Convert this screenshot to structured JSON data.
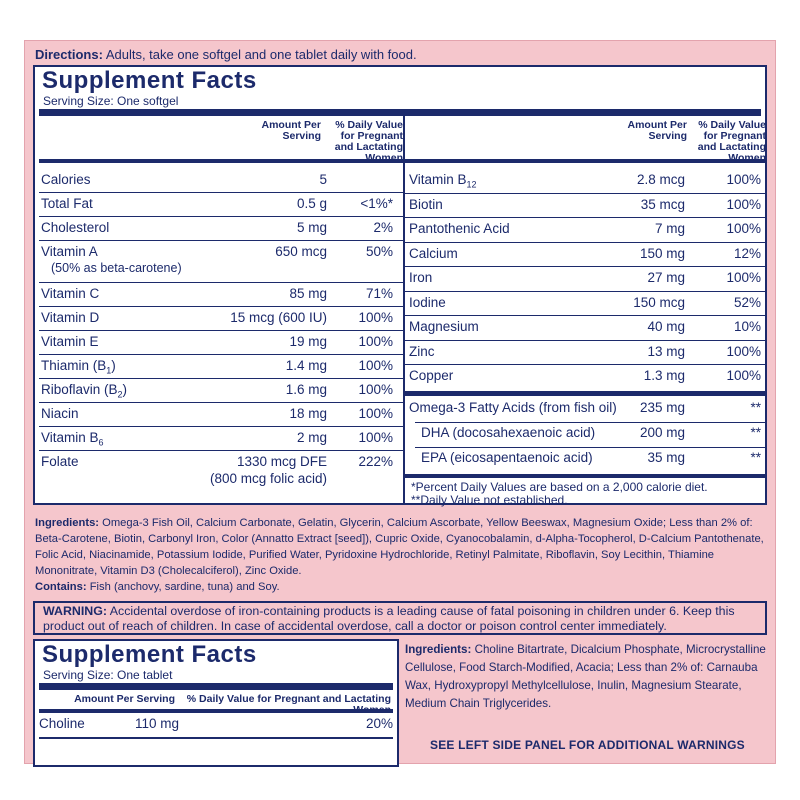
{
  "directions": {
    "label": "Directions:",
    "text": "Adults, take one softgel and one tablet daily with food."
  },
  "softgel_facts": {
    "title": "Supplement Facts",
    "serving": "Serving Size: One softgel",
    "col_amount": "Amount Per Serving",
    "col_dv": "% Daily Value for Pregnant and Lactating Women",
    "left_rows": [
      {
        "name": "Calories",
        "amount": "5",
        "dv": ""
      },
      {
        "name": "Total Fat",
        "amount": "0.5 g",
        "dv": "<1%*"
      },
      {
        "name": "Cholesterol",
        "amount": "5 mg",
        "dv": "2%"
      },
      {
        "name": "Vitamin A",
        "sub": "(50% as beta-carotene)",
        "amount": "650 mcg",
        "dv": "50%"
      },
      {
        "name": "Vitamin C",
        "amount": "85 mg",
        "dv": "71%"
      },
      {
        "name": "Vitamin D",
        "amount": "15 mcg (600 IU)",
        "dv": "100%"
      },
      {
        "name": "Vitamin E",
        "amount": "19 mg",
        "dv": "100%"
      },
      {
        "name": "Thiamin (B1)",
        "amount": "1.4 mg",
        "dv": "100%"
      },
      {
        "name": "Riboflavin (B2)",
        "amount": "1.6 mg",
        "dv": "100%"
      },
      {
        "name": "Niacin",
        "amount": "18 mg",
        "dv": "100%"
      },
      {
        "name": "Vitamin B6",
        "amount": "2 mg",
        "dv": "100%"
      },
      {
        "name": "Folate",
        "amount": "1330 mcg DFE",
        "amount2": "(800 mcg folic acid)",
        "dv": "222%"
      }
    ],
    "right_rows": [
      {
        "name": "Vitamin B12",
        "amount": "2.8 mcg",
        "dv": "100%"
      },
      {
        "name": "Biotin",
        "amount": "35 mcg",
        "dv": "100%"
      },
      {
        "name": "Pantothenic Acid",
        "amount": "7 mg",
        "dv": "100%"
      },
      {
        "name": "Calcium",
        "amount": "150 mg",
        "dv": "12%"
      },
      {
        "name": "Iron",
        "amount": "27 mg",
        "dv": "100%"
      },
      {
        "name": "Iodine",
        "amount": "150 mcg",
        "dv": "52%"
      },
      {
        "name": "Magnesium",
        "amount": "40 mg",
        "dv": "10%"
      },
      {
        "name": "Zinc",
        "amount": "13 mg",
        "dv": "100%"
      },
      {
        "name": "Copper",
        "amount": "1.3 mg",
        "dv": "100%"
      }
    ],
    "omega_rows": [
      {
        "name": "Omega-3 Fatty Acids (from fish oil)",
        "amount": "235 mg",
        "dv": "**"
      },
      {
        "name": "DHA (docosahexaenoic acid)",
        "amount": "200 mg",
        "dv": "**"
      },
      {
        "name": "EPA (eicosapentaenoic acid)",
        "amount": "35 mg",
        "dv": "**"
      }
    ],
    "footnote1": "*Percent Daily Values are based on a 2,000 calorie diet.",
    "footnote2": "**Daily Value not established."
  },
  "ingredients": {
    "label": "Ingredients:",
    "text": "Omega-3 Fish Oil, Calcium Carbonate, Gelatin, Glycerin, Calcium Ascorbate, Yellow Beeswax, Magnesium Oxide; Less than 2% of: Beta-Carotene, Biotin, Carbonyl Iron, Color (Annatto Extract [seed]), Cupric Oxide, Cyanocobalamin, d-Alpha-Tocopherol, D-Calcium Pantothenate, Folic Acid, Niacinamide, Potassium Iodide, Purified Water, Pyridoxine Hydrochloride, Retinyl Palmitate, Riboflavin, Soy Lecithin, Thiamine Mononitrate, Vitamin D3 (Cholecalciferol), Zinc Oxide."
  },
  "contains": {
    "label": "Contains:",
    "text": "Fish (anchovy, sardine, tuna) and Soy."
  },
  "warning": {
    "label": "WARNING:",
    "text": "Accidental overdose of iron-containing products is a leading cause of fatal poisoning in children under 6. Keep this product out of reach of children. In case of accidental overdose, call a doctor or poison control center immediately."
  },
  "tablet_facts": {
    "title": "Supplement Facts",
    "serving": "Serving Size: One tablet",
    "col_amount": "Amount Per Serving",
    "col_dv": "% Daily Value for Pregnant and Lactating Women",
    "row": {
      "name": "Choline",
      "amount": "110 mg",
      "dv": "20%"
    }
  },
  "tablet_ingredients": {
    "label": "Ingredients:",
    "text": "Choline Bitartrate, Dicalcium Phosphate, Microcrystalline Cellulose, Food Starch-Modified, Acacia; Less than 2% of: Carnauba Wax, Hydroxypropyl Methylcellulose, Inulin, Magnesium Stearate, Medium Chain Triglycerides."
  },
  "see_left": "SEE LEFT SIDE PANEL FOR ADDITIONAL WARNINGS",
  "colors": {
    "ink": "#1c2a6b",
    "panel": "#f5c6cc"
  }
}
